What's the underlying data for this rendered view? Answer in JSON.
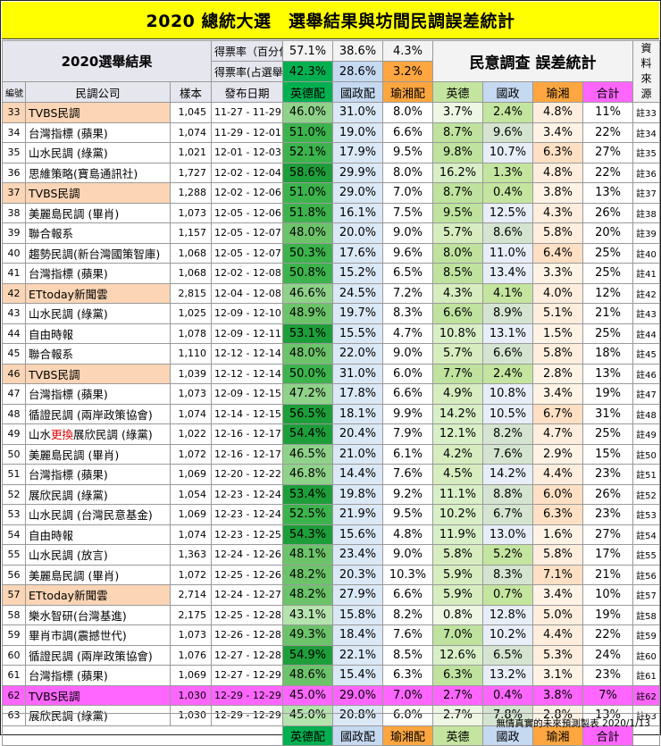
{
  "title": "2020 總統大選　選舉結果與坊間民調誤差統計",
  "summary": {
    "block_label": "2020選舉結果",
    "row1_label": "得票率（百分化）",
    "row1_values": [
      "57.1%",
      "38.6%",
      "4.3%"
    ],
    "row2_label": "得票率(占選舉人數)",
    "row2_values": [
      "42.3%",
      "28.6%",
      "3.2%"
    ],
    "error_title": "民意調查 誤差統計",
    "source_label": "資料來源"
  },
  "columns": {
    "no": "編號",
    "company": "民調公司",
    "sample": "樣本",
    "date": "發布日期",
    "ying": "英德配",
    "guo": "國政配",
    "yu": "瑜湘配",
    "err_ying": "英德",
    "err_guo": "國政",
    "err_yu": "瑜湘",
    "err_total": "合計"
  },
  "colors": {
    "title_bg": "#ffff00",
    "orange_row": "#fbd5b5",
    "magenta_row": "#ff66ff",
    "yu_header": "#ffa640",
    "total_header": "#ff66ff",
    "ying_header": "#00b050",
    "guo_header": "#c5d9f1",
    "err_header": "#c4e59f"
  },
  "rows": [
    {
      "no": "33",
      "company": "TVBS民調",
      "sample": "1,045",
      "date": "11-27 - 11-29",
      "ying": "46.0%",
      "guo": "31.0%",
      "yu": "8.0%",
      "ey": "3.7%",
      "eg": "2.4%",
      "eu": "4.8%",
      "et": "11%",
      "src": "註33",
      "hl": "orange"
    },
    {
      "no": "34",
      "company": "台灣指標 (蘋果)",
      "sample": "1,074",
      "date": "11-29 - 12-01",
      "ying": "51.0%",
      "guo": "19.0%",
      "yu": "6.6%",
      "ey": "8.7%",
      "eg": "9.6%",
      "eu": "3.4%",
      "et": "22%",
      "src": "註34",
      "hl": ""
    },
    {
      "no": "35",
      "company": "山水民調 (綠黨)",
      "sample": "1,021",
      "date": "12-01 - 12-03",
      "ying": "52.1%",
      "guo": "17.9%",
      "yu": "9.5%",
      "ey": "9.8%",
      "eg": "10.7%",
      "eu": "6.3%",
      "et": "27%",
      "src": "註35",
      "hl": ""
    },
    {
      "no": "36",
      "company": "思維策略(寶島通訊社)",
      "sample": "1,727",
      "date": "12-02 - 12-04",
      "ying": "58.6%",
      "guo": "29.9%",
      "yu": "8.0%",
      "ey": "16.2%",
      "eg": "1.3%",
      "eu": "4.8%",
      "et": "22%",
      "src": "註36",
      "hl": ""
    },
    {
      "no": "37",
      "company": "TVBS民調",
      "sample": "1,288",
      "date": "12-02 - 12-06",
      "ying": "51.0%",
      "guo": "29.0%",
      "yu": "7.0%",
      "ey": "8.7%",
      "eg": "0.4%",
      "eu": "3.8%",
      "et": "13%",
      "src": "註37",
      "hl": "orange"
    },
    {
      "no": "38",
      "company": "美麗島民調 (畢肖)",
      "sample": "1,073",
      "date": "12-05 - 12-06",
      "ying": "51.8%",
      "guo": "16.1%",
      "yu": "7.5%",
      "ey": "9.5%",
      "eg": "12.5%",
      "eu": "4.3%",
      "et": "26%",
      "src": "註38",
      "hl": ""
    },
    {
      "no": "39",
      "company": "聯合報系",
      "sample": "1,157",
      "date": "12-05 - 12-07",
      "ying": "48.0%",
      "guo": "20.0%",
      "yu": "9.0%",
      "ey": "5.7%",
      "eg": "8.6%",
      "eu": "5.8%",
      "et": "20%",
      "src": "註39",
      "hl": ""
    },
    {
      "no": "40",
      "company": "趨勢民調(新台灣國策智庫)",
      "sample": "1,068",
      "date": "12-05 - 12-07",
      "ying": "50.3%",
      "guo": "17.6%",
      "yu": "9.6%",
      "ey": "8.0%",
      "eg": "11.0%",
      "eu": "6.4%",
      "et": "25%",
      "src": "註40",
      "hl": ""
    },
    {
      "no": "41",
      "company": "台灣指標 (蘋果)",
      "sample": "1,068",
      "date": "12-02 - 12-08",
      "ying": "50.8%",
      "guo": "15.2%",
      "yu": "6.5%",
      "ey": "8.5%",
      "eg": "13.4%",
      "eu": "3.3%",
      "et": "25%",
      "src": "註41",
      "hl": ""
    },
    {
      "no": "42",
      "company": "ETtoday新聞雲",
      "sample": "2,815",
      "date": "12-04 - 12-08",
      "ying": "46.6%",
      "guo": "24.5%",
      "yu": "7.2%",
      "ey": "4.3%",
      "eg": "4.1%",
      "eu": "4.0%",
      "et": "12%",
      "src": "註42",
      "hl": "orange"
    },
    {
      "no": "43",
      "company": "山水民調 (綠黨)",
      "sample": "1,025",
      "date": "12-09 - 12-10",
      "ying": "48.9%",
      "guo": "19.7%",
      "yu": "8.3%",
      "ey": "6.6%",
      "eg": "8.9%",
      "eu": "5.1%",
      "et": "21%",
      "src": "註43",
      "hl": ""
    },
    {
      "no": "44",
      "company": "自由時報",
      "sample": "1,078",
      "date": "12-09 - 12-11",
      "ying": "53.1%",
      "guo": "15.5%",
      "yu": "4.7%",
      "ey": "10.8%",
      "eg": "13.1%",
      "eu": "1.5%",
      "et": "25%",
      "src": "註44",
      "hl": ""
    },
    {
      "no": "45",
      "company": "聯合報系",
      "sample": "1,110",
      "date": "12-12 - 12-14",
      "ying": "48.0%",
      "guo": "22.0%",
      "yu": "9.0%",
      "ey": "5.7%",
      "eg": "6.6%",
      "eu": "5.8%",
      "et": "18%",
      "src": "註45",
      "hl": ""
    },
    {
      "no": "46",
      "company": "TVBS民調",
      "sample": "1,039",
      "date": "12-12 - 12-14",
      "ying": "50.0%",
      "guo": "31.0%",
      "yu": "6.0%",
      "ey": "7.7%",
      "eg": "2.4%",
      "eu": "2.8%",
      "et": "13%",
      "src": "註46",
      "hl": "orange"
    },
    {
      "no": "47",
      "company": "台灣指標 (蘋果)",
      "sample": "1,073",
      "date": "12-09 - 12-15",
      "ying": "47.2%",
      "guo": "17.8%",
      "yu": "6.6%",
      "ey": "4.9%",
      "eg": "10.8%",
      "eu": "3.4%",
      "et": "19%",
      "src": "註47",
      "hl": ""
    },
    {
      "no": "48",
      "company": "循證民調 (兩岸政策協會)",
      "sample": "1,074",
      "date": "12-14 - 12-15",
      "ying": "56.5%",
      "guo": "18.1%",
      "yu": "9.9%",
      "ey": "14.2%",
      "eg": "10.5%",
      "eu": "6.7%",
      "et": "31%",
      "src": "註48",
      "hl": ""
    },
    {
      "no": "49",
      "company_a": "山水",
      "company_b": "更換",
      "company_c": "展欣民調 (綠黨)",
      "sample": "1,022",
      "date": "12-16 - 12-17",
      "ying": "54.4%",
      "guo": "20.4%",
      "yu": "7.9%",
      "ey": "12.1%",
      "eg": "8.2%",
      "eu": "4.7%",
      "et": "25%",
      "src": "註49",
      "hl": ""
    },
    {
      "no": "50",
      "company": "美麗島民調 (畢肖)",
      "sample": "1,072",
      "date": "12-16 - 12-17",
      "ying": "46.5%",
      "guo": "21.0%",
      "yu": "6.1%",
      "ey": "4.2%",
      "eg": "7.6%",
      "eu": "2.9%",
      "et": "15%",
      "src": "註50",
      "hl": ""
    },
    {
      "no": "51",
      "company": "台灣指標 (蘋果)",
      "sample": "1,069",
      "date": "12-20 - 12-22",
      "ying": "46.8%",
      "guo": "14.4%",
      "yu": "7.6%",
      "ey": "4.5%",
      "eg": "14.2%",
      "eu": "4.4%",
      "et": "23%",
      "src": "註51",
      "hl": ""
    },
    {
      "no": "52",
      "company": "展欣民調 (綠黨)",
      "sample": "1,054",
      "date": "12-23 - 12-24",
      "ying": "53.4%",
      "guo": "19.8%",
      "yu": "9.2%",
      "ey": "11.1%",
      "eg": "8.8%",
      "eu": "6.0%",
      "et": "26%",
      "src": "註52",
      "hl": ""
    },
    {
      "no": "53",
      "company": "山水民調 (台灣民意基金)",
      "sample": "1,069",
      "date": "12-23 - 12-24",
      "ying": "52.5%",
      "guo": "21.9%",
      "yu": "9.5%",
      "ey": "10.2%",
      "eg": "6.7%",
      "eu": "6.3%",
      "et": "23%",
      "src": "註53",
      "hl": ""
    },
    {
      "no": "54",
      "company": "自由時報",
      "sample": "1,074",
      "date": "12-23 - 12-25",
      "ying": "54.3%",
      "guo": "15.6%",
      "yu": "4.8%",
      "ey": "11.9%",
      "eg": "13.0%",
      "eu": "1.6%",
      "et": "27%",
      "src": "註54",
      "hl": ""
    },
    {
      "no": "55",
      "company": "山水民調 (放言)",
      "sample": "1,363",
      "date": "12-24 - 12-26",
      "ying": "48.1%",
      "guo": "23.4%",
      "yu": "9.0%",
      "ey": "5.8%",
      "eg": "5.2%",
      "eu": "5.8%",
      "et": "17%",
      "src": "註55",
      "hl": ""
    },
    {
      "no": "56",
      "company": "美麗島民調 (畢肖)",
      "sample": "1,072",
      "date": "12-25 - 12-26",
      "ying": "48.2%",
      "guo": "20.3%",
      "yu": "10.3%",
      "ey": "5.9%",
      "eg": "8.3%",
      "eu": "7.1%",
      "et": "21%",
      "src": "註56",
      "hl": ""
    },
    {
      "no": "57",
      "company": "ETtoday新聞雲",
      "sample": "2,714",
      "date": "12-24 - 12-27",
      "ying": "48.2%",
      "guo": "27.9%",
      "yu": "6.6%",
      "ey": "5.9%",
      "eg": "0.7%",
      "eu": "3.4%",
      "et": "10%",
      "src": "註57",
      "hl": "orange"
    },
    {
      "no": "58",
      "company": "樂水智研(台灣基進)",
      "sample": "2,175",
      "date": "12-25 - 12-28",
      "ying": "43.1%",
      "guo": "15.8%",
      "yu": "8.2%",
      "ey": "0.8%",
      "eg": "12.8%",
      "eu": "5.0%",
      "et": "19%",
      "src": "註58",
      "hl": ""
    },
    {
      "no": "59",
      "company": "畢肖市調(震撼世代)",
      "sample": "1,073",
      "date": "12-26 - 12-28",
      "ying": "49.3%",
      "guo": "18.4%",
      "yu": "7.6%",
      "ey": "7.0%",
      "eg": "10.2%",
      "eu": "4.4%",
      "et": "22%",
      "src": "註59",
      "hl": ""
    },
    {
      "no": "60",
      "company": "循證民調 (兩岸政策協會)",
      "sample": "1,076",
      "date": "12-27 - 12-28",
      "ying": "54.9%",
      "guo": "22.1%",
      "yu": "8.5%",
      "ey": "12.6%",
      "eg": "6.5%",
      "eu": "5.3%",
      "et": "24%",
      "src": "註60",
      "hl": ""
    },
    {
      "no": "61",
      "company": "台灣指標 (蘋果)",
      "sample": "1,069",
      "date": "12-27 - 12-29",
      "ying": "48.6%",
      "guo": "15.4%",
      "yu": "6.3%",
      "ey": "6.3%",
      "eg": "13.2%",
      "eu": "3.1%",
      "et": "23%",
      "src": "註61",
      "hl": ""
    },
    {
      "no": "62",
      "company": "TVBS民調",
      "sample": "1,030",
      "date": "12-29 - 12-29",
      "ying": "45.0%",
      "guo": "29.0%",
      "yu": "7.0%",
      "ey": "2.7%",
      "eg": "0.4%",
      "eu": "3.8%",
      "et": "7%",
      "src": "註62",
      "hl": "magenta"
    },
    {
      "no": "63",
      "company": "展欣民調 (綠黨)",
      "sample": "1,030",
      "date": "12-29 - 12-29",
      "ying": "45.0%",
      "guo": "20.8%",
      "yu": "6.0%",
      "ey": "2.7%",
      "eg": "7.8%",
      "eu": "2.8%",
      "et": "13%",
      "src": "註63",
      "hl": ""
    }
  ],
  "bottom_labels": {
    "ying": "英德配",
    "guo": "國政配",
    "yu": "瑜湘配",
    "err_ying": "英德",
    "err_guo": "國政",
    "err_yu": "瑜湘",
    "err_total": "合計"
  },
  "footer": "無情真實的未來預測製表 2020/1/13"
}
